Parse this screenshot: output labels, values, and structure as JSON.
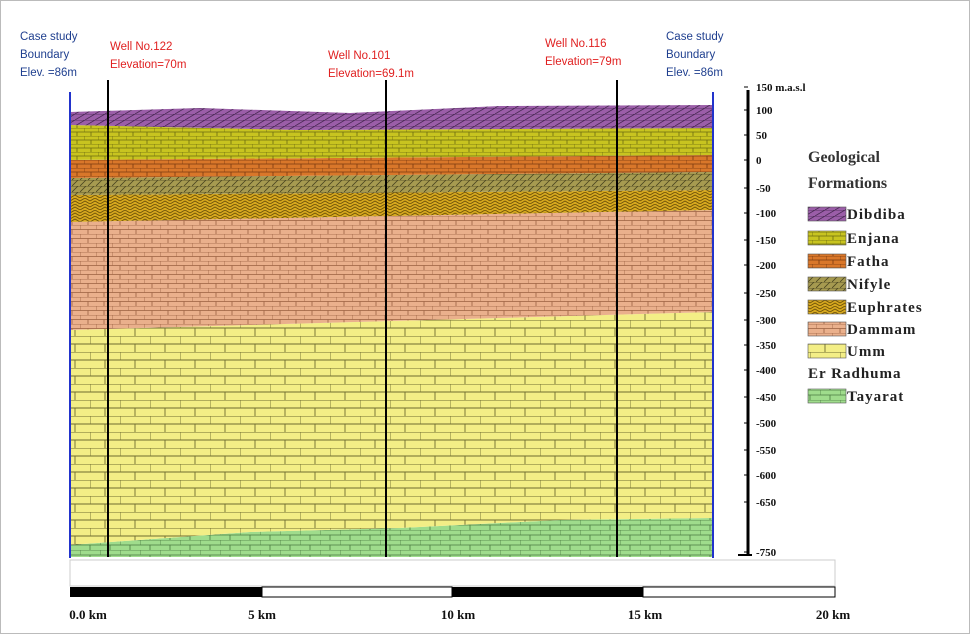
{
  "boundary_left": {
    "lines": [
      "Case study",
      "Boundary",
      "Elev. =86m"
    ]
  },
  "boundary_right": {
    "lines": [
      "Case study",
      "Boundary",
      "Elev. =86m"
    ]
  },
  "wells": [
    {
      "name": "Well No.122",
      "elevation": "Elevation=70m"
    },
    {
      "name": "Well No.101",
      "elevation": "Elevation=69.1m"
    },
    {
      "name": "Well No.116",
      "elevation": "Elevation=79m"
    }
  ],
  "elevation_axis": {
    "ticks": [
      "150 m.a.s.l",
      "100",
      "50",
      "0",
      "-50",
      "-100",
      "-150",
      "-200",
      "-250",
      "-300",
      "-350",
      "-400",
      "-450",
      "-500",
      "-550",
      "-600",
      "-650",
      "-750"
    ]
  },
  "legend": {
    "title": [
      "Geological",
      "Formations"
    ],
    "items": [
      [
        "Dibdiba"
      ],
      [
        "Enjana"
      ],
      [
        "Fatha"
      ],
      [
        "Nifyle"
      ],
      [
        "Euphrates"
      ],
      [
        "Dammam"
      ],
      [
        "Umm",
        "Er Radhuma"
      ],
      [
        "Tayarat"
      ]
    ]
  },
  "scale_bar": {
    "labels": [
      "0.0 km",
      "5 km",
      "10 km",
      "15 km",
      "20 km"
    ]
  }
}
